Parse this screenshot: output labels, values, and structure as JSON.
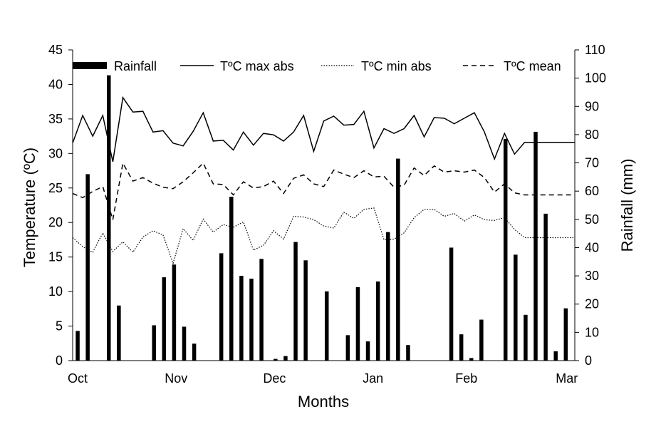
{
  "chart_data": {
    "type": "bar+line",
    "title": "",
    "xlabel": "Months",
    "ylabel": "Temperature (ºC)",
    "y2label": "Rainfall (mm)",
    "x_range": [
      0,
      50
    ],
    "ylim": [
      0,
      45
    ],
    "y2lim": [
      0,
      110
    ],
    "y_ticks": [
      0,
      5,
      10,
      15,
      20,
      25,
      30,
      35,
      40,
      45
    ],
    "y2_ticks": [
      0,
      10,
      20,
      30,
      40,
      50,
      60,
      70,
      80,
      90,
      100,
      110
    ],
    "x_ticks": [
      {
        "label": "Oct",
        "x": 0.5
      },
      {
        "label": "Nov",
        "x": 10.3
      },
      {
        "label": "Dec",
        "x": 20.1
      },
      {
        "label": "Jan",
        "x": 29.9
      },
      {
        "label": "Feb",
        "x": 39.2
      },
      {
        "label": "Mar",
        "x": 49.2
      }
    ],
    "legend": {
      "position": "top",
      "entries": [
        {
          "label": "Rainfall",
          "style": "bar"
        },
        {
          "label": "TºC max abs",
          "style": "solid"
        },
        {
          "label": "TºC min abs",
          "style": "dotted"
        },
        {
          "label": "TºC mean",
          "style": "dashed"
        }
      ]
    },
    "rainfall": {
      "name": "Rainfall",
      "axis": "right",
      "x": [
        0.5,
        1.5,
        3.6,
        4.6,
        8.1,
        9.1,
        10.1,
        11.1,
        12.1,
        14.8,
        15.8,
        16.8,
        17.8,
        18.8,
        20.2,
        21.2,
        22.2,
        23.2,
        25.3,
        27.4,
        28.4,
        29.4,
        30.4,
        31.4,
        32.4,
        33.4,
        37.7,
        38.7,
        39.7,
        40.7,
        43.1,
        44.1,
        45.1,
        46.1,
        47.1,
        48.1,
        49.1
      ],
      "values": [
        10.5,
        66,
        101,
        19.5,
        12.5,
        29.5,
        34,
        12,
        6,
        38,
        58,
        30,
        29,
        36,
        0.6,
        1.6,
        42,
        35.5,
        24.5,
        9,
        26,
        6.8,
        28,
        45.5,
        71.5,
        5.5,
        40,
        9.3,
        0.9,
        14.5,
        78.5,
        37.5,
        16.2,
        81,
        52,
        3.3,
        18.5
      ]
    },
    "series": [
      {
        "name": "TºC max abs",
        "style": "solid",
        "x": [
          0,
          1,
          2,
          3,
          4,
          5,
          6,
          7,
          8,
          9,
          10,
          11,
          12,
          13,
          14,
          15,
          16,
          17,
          18,
          19,
          20,
          21,
          22,
          23,
          24,
          25,
          26,
          27,
          28,
          29,
          30,
          31,
          32,
          33,
          34,
          35,
          36,
          37,
          38,
          39,
          40,
          41,
          42,
          43,
          44,
          45,
          46,
          47,
          48,
          49,
          50
        ],
        "values": [
          31.5,
          35.5,
          32.5,
          35.5,
          28.8,
          38.1,
          36,
          36.1,
          33.1,
          33.3,
          31.5,
          31.1,
          33.2,
          35.9,
          31.8,
          31.9,
          30.5,
          33.1,
          31.2,
          32.9,
          32.7,
          31.8,
          33.1,
          35.5,
          30.3,
          34.7,
          35.4,
          34.1,
          34.2,
          36.1,
          30.8,
          33.6,
          32.9,
          33.6,
          35.5,
          32.4,
          35.2,
          35.1,
          34.3,
          35.1,
          35.9,
          33.1,
          29.2,
          32.9,
          29.9,
          31.6,
          31.6,
          31.6,
          31.6,
          31.6,
          31.6
        ]
      },
      {
        "name": "TºC min abs",
        "style": "dotted",
        "x": [
          0,
          1,
          2,
          3,
          4,
          5,
          6,
          7,
          8,
          9,
          10,
          11,
          12,
          13,
          14,
          15,
          16,
          17,
          18,
          19,
          20,
          21,
          22,
          23,
          24,
          25,
          26,
          27,
          28,
          29,
          30,
          31,
          32,
          33,
          34,
          35,
          36,
          37,
          38,
          39,
          40,
          41,
          42,
          43,
          44,
          45,
          46,
          47,
          48,
          49,
          50
        ],
        "values": [
          17.8,
          16.5,
          15.7,
          18.5,
          15.8,
          17.2,
          15.7,
          17.9,
          18.8,
          18.2,
          14.1,
          19.1,
          17.4,
          20.5,
          18.6,
          19.7,
          19.3,
          20.1,
          16,
          16.7,
          18.8,
          17.6,
          20.9,
          20.8,
          20.4,
          19.5,
          19.2,
          21.5,
          20.6,
          21.9,
          22.1,
          17.5,
          17.6,
          18.5,
          20.7,
          21.9,
          21.9,
          20.9,
          21.3,
          20.2,
          21.1,
          20.4,
          20.3,
          20.7,
          19,
          17.8,
          17.8,
          17.8,
          17.8,
          17.8,
          17.8
        ]
      },
      {
        "name": "TºC mean",
        "style": "dashed",
        "x": [
          0,
          1,
          2,
          3,
          4,
          5,
          6,
          7,
          8,
          9,
          10,
          11,
          12,
          13,
          14,
          15,
          16,
          17,
          18,
          19,
          20,
          21,
          22,
          23,
          24,
          25,
          26,
          27,
          28,
          29,
          30,
          31,
          32,
          33,
          34,
          35,
          36,
          37,
          38,
          39,
          40,
          41,
          42,
          43,
          44,
          45,
          46,
          47,
          48,
          49,
          50
        ],
        "values": [
          24.2,
          23.6,
          24.5,
          25.2,
          20.4,
          28.6,
          26,
          26.5,
          25.7,
          25.1,
          24.9,
          25.9,
          27.2,
          28.6,
          25.6,
          25.5,
          24,
          25.9,
          25,
          25.2,
          26,
          24.2,
          26.4,
          26.9,
          25.6,
          25.2,
          27.6,
          27,
          26.5,
          27.5,
          26.6,
          26.7,
          25.1,
          25.4,
          27.9,
          26.8,
          28.2,
          27.3,
          27.5,
          27.3,
          27.6,
          26.5,
          24.4,
          25.6,
          24.3,
          24,
          24,
          24,
          24,
          24,
          24
        ]
      }
    ]
  }
}
